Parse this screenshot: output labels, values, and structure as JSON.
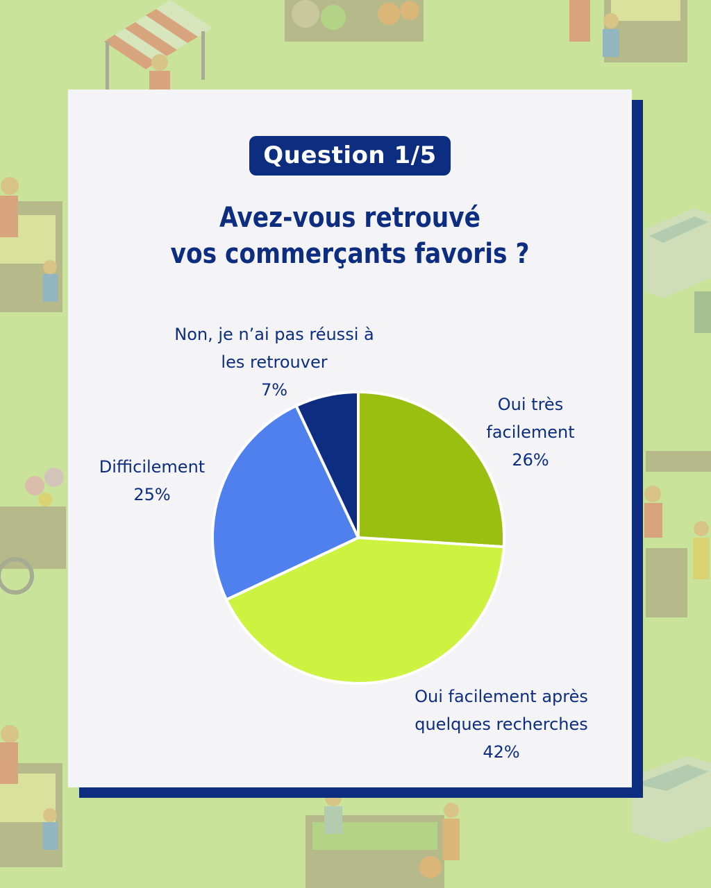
{
  "badge": "Question 1/5",
  "question": {
    "line1": "Avez-vous retrouvé",
    "line2": "vos commerçants favoris ?"
  },
  "colors": {
    "background": "#c9e39a",
    "card": "#f4f4f7",
    "navy": "#0d2d80"
  },
  "chart_data": {
    "type": "pie",
    "title": "",
    "start_angle_deg": 0,
    "slices": [
      {
        "label_lines": [
          "Oui très",
          "facilement"
        ],
        "value": 26,
        "value_label": "26%",
        "color": "#9abf10"
      },
      {
        "label_lines": [
          "Oui facilement après",
          "quelques recherches"
        ],
        "value": 42,
        "value_label": "42%",
        "color": "#cdf23f"
      },
      {
        "label_lines": [
          "Difficilement"
        ],
        "value": 25,
        "value_label": "25%",
        "color": "#4f80ee"
      },
      {
        "label_lines": [
          "Non, je n’ai pas réussi à",
          "les retrouver"
        ],
        "value": 7,
        "value_label": "7%",
        "color": "#0d2d80"
      }
    ]
  }
}
